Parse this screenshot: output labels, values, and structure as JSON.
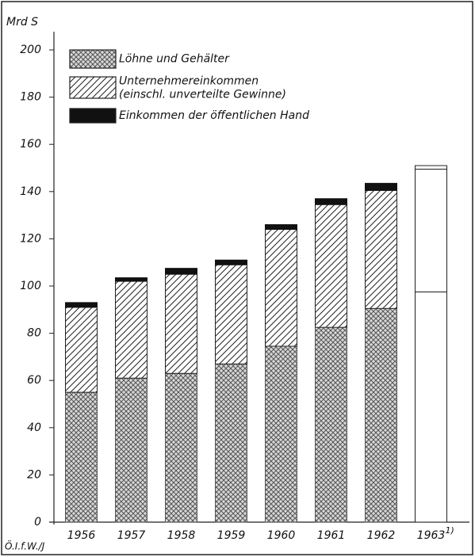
{
  "chart_data": {
    "type": "stacked_bar",
    "y_label": "Mrd S",
    "credit": "Ö.I.f.W./J",
    "categories": [
      "1956",
      "1957",
      "1958",
      "1959",
      "1960",
      "1961",
      "1962",
      "1963"
    ],
    "footnote_marker": "1)",
    "footnoted_category": "1963",
    "outlined_category": "1963",
    "series": [
      {
        "name": "Löhne und Gehälter",
        "pattern": "crosshatch",
        "color": "#555555",
        "values": [
          55,
          61,
          63,
          67,
          74.5,
          82.5,
          90.5,
          97.5
        ]
      },
      {
        "name": "Unternehmereinkommen\n(einschl. unverteilte Gewinne)",
        "pattern": "hatch",
        "color": "#222222",
        "values": [
          36,
          41,
          42,
          42,
          49.5,
          52,
          50,
          52
        ]
      },
      {
        "name": "Einkommen der öffentlichen Hand",
        "pattern": "solid",
        "color": "#111111",
        "values": [
          2,
          1.5,
          2.5,
          2,
          2,
          2.5,
          3,
          1.5
        ]
      }
    ],
    "ylim": [
      0,
      200
    ],
    "yticks": [
      0,
      20,
      40,
      60,
      80,
      100,
      120,
      140,
      160,
      180,
      200
    ]
  }
}
